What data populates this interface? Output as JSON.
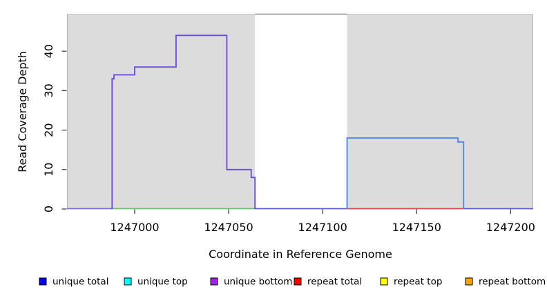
{
  "chart_data": {
    "type": "line",
    "subtype": "step-coverage-plot",
    "xlabel": "Coordinate in Reference Genome",
    "ylabel": "Read Coverage Depth",
    "xlim": [
      1246964,
      1247212
    ],
    "ylim": [
      0,
      49.3
    ],
    "grid": false,
    "x_ticks": [
      {
        "value": 1247000,
        "label": "1247000"
      },
      {
        "value": 1247050,
        "label": "1247050"
      },
      {
        "value": 1247100,
        "label": "1247100"
      },
      {
        "value": 1247150,
        "label": "1247150"
      },
      {
        "value": 1247200,
        "label": "1247200"
      }
    ],
    "y_ticks": [
      {
        "value": 0,
        "label": "0"
      },
      {
        "value": 10,
        "label": "10"
      },
      {
        "value": 20,
        "label": "20"
      },
      {
        "value": 30,
        "label": "30"
      },
      {
        "value": 40,
        "label": "40"
      }
    ],
    "shaded_regions": [
      {
        "from": 1246964,
        "to": 1247064
      },
      {
        "from": 1247113,
        "to": 1247212
      }
    ],
    "gap_region": {
      "from": 1247064,
      "to": 1247113
    },
    "series": [
      {
        "name": "left-block-coverage",
        "color": "#6A46E0",
        "points": [
          [
            1246988,
            0
          ],
          [
            1246988,
            33
          ],
          [
            1246989,
            33
          ],
          [
            1246989,
            34
          ],
          [
            1247000,
            34
          ],
          [
            1247000,
            36
          ],
          [
            1247022,
            36
          ],
          [
            1247022,
            44
          ],
          [
            1247049,
            44
          ],
          [
            1247049,
            10
          ],
          [
            1247062,
            10
          ],
          [
            1247062,
            8
          ],
          [
            1247064,
            8
          ],
          [
            1247064,
            0
          ]
        ]
      },
      {
        "name": "right-block-coverage",
        "color": "#4285F4",
        "points": [
          [
            1247113,
            0
          ],
          [
            1247113,
            18
          ],
          [
            1247172,
            18
          ],
          [
            1247172,
            17
          ],
          [
            1247175,
            17
          ],
          [
            1247175,
            0
          ]
        ]
      }
    ],
    "baseline_segments": [
      {
        "from": 1246964,
        "to": 1246988,
        "value": 0,
        "color": "#7D6CE8"
      },
      {
        "from": 1246988,
        "to": 1247064,
        "value": 0,
        "color": "#6FBF6F"
      },
      {
        "from": 1247064,
        "to": 1247113,
        "value": 0,
        "color": "#5A5ADF"
      },
      {
        "from": 1247113,
        "to": 1247175,
        "value": 0,
        "color": "#E8444E"
      },
      {
        "from": 1247175,
        "to": 1247212,
        "value": 0,
        "color": "#5A5ADF"
      }
    ],
    "colors": {
      "panel_shade": "#DCDCDC",
      "gap_top_border": "#8C8C8C",
      "panel_edge": "#B4B4B4",
      "tick": "#333333"
    }
  },
  "legend": {
    "items": [
      {
        "label": "unique total",
        "color": "#0000FF"
      },
      {
        "label": "unique top",
        "color": "#00FFFF"
      },
      {
        "label": "unique bottom",
        "color": "#A020F0"
      },
      {
        "label": "repeat total",
        "color": "#FF0000"
      },
      {
        "label": "repeat top",
        "color": "#FFFF00"
      },
      {
        "label": "repeat bottom",
        "color": "#FFA500"
      }
    ]
  }
}
